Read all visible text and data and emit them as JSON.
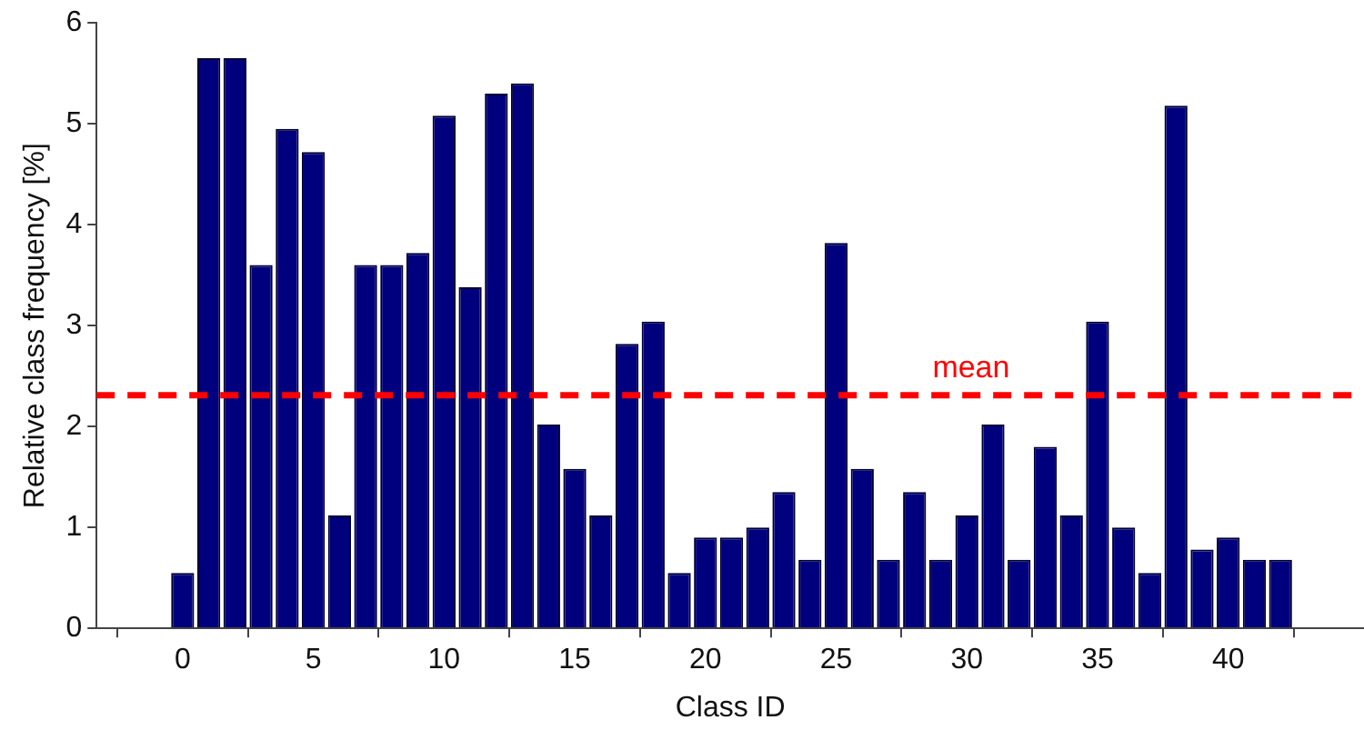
{
  "chart_data": {
    "type": "bar",
    "xlabel": "Class ID",
    "ylabel": "Relative class frequency [%]",
    "x": [
      0,
      1,
      2,
      3,
      4,
      5,
      6,
      7,
      8,
      9,
      10,
      11,
      12,
      13,
      14,
      15,
      16,
      17,
      18,
      19,
      20,
      21,
      22,
      23,
      24,
      25,
      26,
      27,
      28,
      29,
      30,
      31,
      32,
      33,
      34,
      35,
      36,
      37,
      38,
      39,
      40,
      41,
      42
    ],
    "values": [
      0.55,
      5.65,
      5.65,
      3.6,
      4.95,
      4.72,
      1.12,
      3.6,
      3.6,
      3.72,
      5.08,
      3.38,
      5.3,
      5.4,
      2.02,
      1.58,
      1.12,
      2.82,
      3.04,
      0.55,
      0.9,
      0.9,
      1.0,
      1.35,
      0.68,
      3.82,
      1.58,
      0.68,
      1.35,
      0.68,
      1.12,
      2.02,
      0.68,
      1.8,
      1.12,
      3.04,
      1.0,
      0.55,
      5.18,
      0.78,
      0.9,
      0.68,
      0.68
    ],
    "color": "#00007f",
    "xlim": [
      -0.6,
      42.5
    ],
    "xticks": [
      0,
      5,
      10,
      15,
      20,
      25,
      30,
      35,
      40
    ],
    "ylim": [
      0,
      6
    ],
    "yticks": [
      0,
      1,
      2,
      3,
      4,
      5,
      6
    ],
    "ref_lines": [
      {
        "axis": "y",
        "value": 2.31,
        "label": "mean",
        "color": "#ff0000",
        "line_style": "dashed"
      }
    ],
    "grid": false,
    "legend": false
  }
}
